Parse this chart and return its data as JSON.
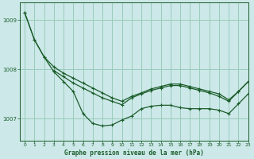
{
  "background_color": "#cce8e8",
  "grid_color": "#99ccbb",
  "line_color": "#1a5c2a",
  "title": "Graphe pression niveau de la mer (hPa)",
  "xlim": [
    -0.5,
    23
  ],
  "ylim": [
    1006.55,
    1009.35
  ],
  "yticks": [
    1007,
    1008,
    1009
  ],
  "xtick_labels": [
    "0",
    "1",
    "2",
    "3",
    "4",
    "5",
    "6",
    "7",
    "8",
    "9",
    "10",
    "11",
    "12",
    "13",
    "14",
    "15",
    "16",
    "17",
    "18",
    "19",
    "20",
    "21",
    "22",
    "23"
  ],
  "xticks": [
    0,
    1,
    2,
    3,
    4,
    5,
    6,
    7,
    8,
    9,
    10,
    11,
    12,
    13,
    14,
    15,
    16,
    17,
    18,
    19,
    20,
    21,
    22,
    23
  ],
  "series1_x": [
    0,
    1,
    2,
    3,
    4,
    5,
    6,
    7,
    8,
    9,
    10,
    11,
    12,
    13,
    14,
    15,
    16,
    17,
    18,
    19,
    20,
    21,
    22,
    23
  ],
  "series1_y": [
    1009.15,
    1008.6,
    1008.25,
    1007.95,
    1007.75,
    1007.55,
    1007.1,
    1006.9,
    1006.85,
    1006.87,
    1006.97,
    1007.05,
    1007.2,
    1007.25,
    1007.27,
    1007.27,
    1007.22,
    1007.2,
    1007.2,
    1007.2,
    1007.17,
    1007.1,
    1007.3,
    1007.5
  ],
  "series2_x": [
    3,
    4,
    5,
    6,
    7,
    8,
    9,
    10,
    11,
    12,
    13,
    14,
    15,
    16,
    17,
    18,
    19,
    20,
    21,
    22,
    23
  ],
  "series2_y": [
    1007.97,
    1007.85,
    1007.72,
    1007.62,
    1007.52,
    1007.42,
    1007.35,
    1007.28,
    1007.42,
    1007.5,
    1007.57,
    1007.62,
    1007.67,
    1007.67,
    1007.62,
    1007.57,
    1007.52,
    1007.45,
    1007.35,
    1007.55,
    1007.75
  ],
  "series3_x": [
    0,
    1,
    2,
    3,
    4,
    5,
    6,
    7,
    8,
    9,
    10,
    11,
    12,
    13,
    14,
    15,
    16,
    17,
    18,
    19,
    20,
    21,
    22,
    23
  ],
  "series3_y": [
    1009.15,
    1008.6,
    1008.25,
    1008.05,
    1007.92,
    1007.82,
    1007.72,
    1007.62,
    1007.52,
    1007.42,
    1007.35,
    1007.45,
    1007.52,
    1007.6,
    1007.65,
    1007.7,
    1007.7,
    1007.65,
    1007.6,
    1007.55,
    1007.5,
    1007.38,
    1007.55,
    1007.75
  ]
}
